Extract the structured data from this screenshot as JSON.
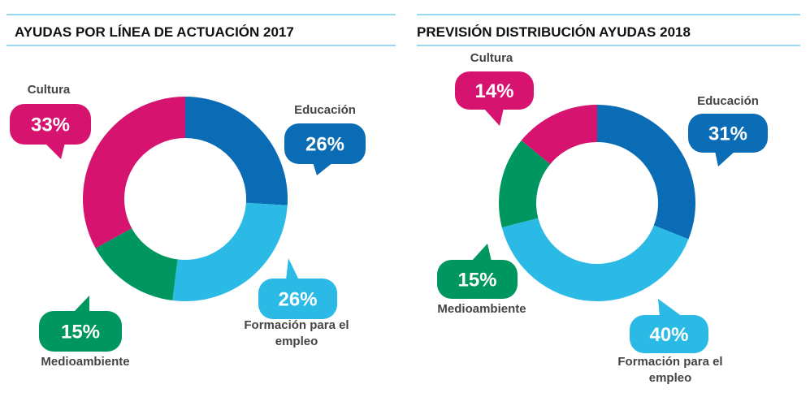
{
  "chart_data": [
    {
      "type": "donut",
      "title": "AYUDAS POR LÍNEA DE ACTUACIÓN 2017",
      "categories": [
        "Educación",
        "Formación para el empleo",
        "Medioambiente",
        "Cultura"
      ],
      "values": [
        26,
        26,
        15,
        33
      ],
      "value_labels": [
        "26%",
        "26%",
        "15%",
        "33%"
      ],
      "colors": [
        "#0a6cb4",
        "#2bbae6",
        "#00965f",
        "#d6136f"
      ]
    },
    {
      "type": "donut",
      "title": "PREVISIÓN DISTRIBUCIÓN AYUDAS 2018",
      "categories": [
        "Educación",
        "Formación para el empleo",
        "Medioambiente",
        "Cultura"
      ],
      "values": [
        31,
        40,
        15,
        14
      ],
      "value_labels": [
        "31%",
        "40%",
        "15%",
        "14%"
      ],
      "colors": [
        "#0a6cb4",
        "#2bbae6",
        "#00965f",
        "#d6136f"
      ]
    }
  ]
}
